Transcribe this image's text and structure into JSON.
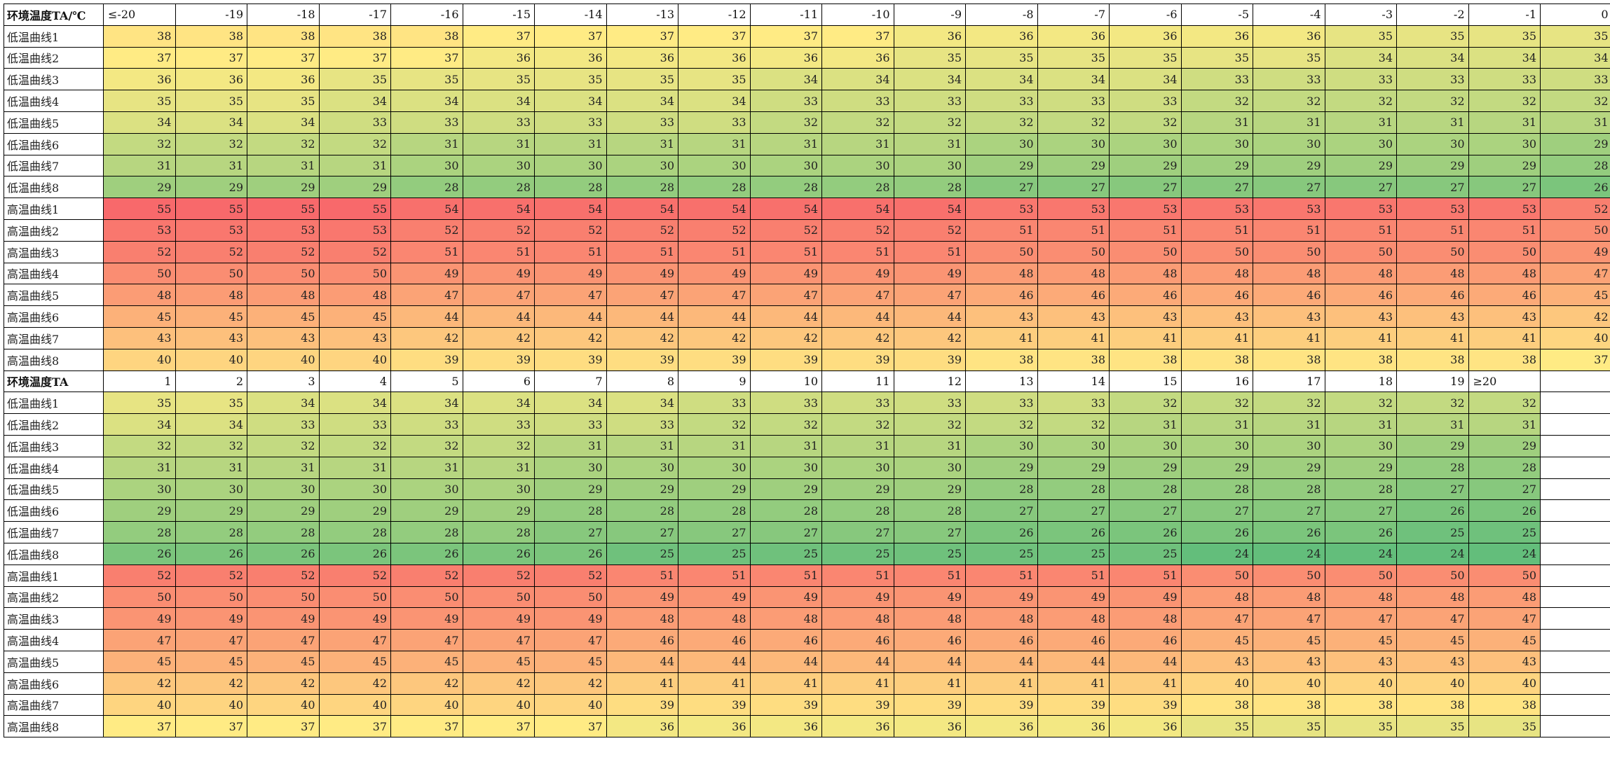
{
  "header_top": {
    "label": "环境温度TA/℃",
    "columns": [
      "≤-20",
      "-19",
      "-18",
      "-17",
      "-16",
      "-15",
      "-14",
      "-13",
      "-12",
      "-11",
      "-10",
      "-9",
      "-8",
      "-7",
      "-6",
      "-5",
      "-4",
      "-3",
      "-2",
      "-1",
      "0"
    ]
  },
  "rows_top": [
    {
      "label": "低温曲线1",
      "values": [
        38,
        38,
        38,
        38,
        38,
        37,
        37,
        37,
        37,
        37,
        37,
        36,
        36,
        36,
        36,
        36,
        36,
        35,
        35,
        35,
        35
      ]
    },
    {
      "label": "低温曲线2",
      "values": [
        37,
        37,
        37,
        37,
        37,
        36,
        36,
        36,
        36,
        36,
        36,
        35,
        35,
        35,
        35,
        35,
        35,
        34,
        34,
        34,
        34
      ]
    },
    {
      "label": "低温曲线3",
      "values": [
        36,
        36,
        36,
        35,
        35,
        35,
        35,
        35,
        35,
        34,
        34,
        34,
        34,
        34,
        34,
        33,
        33,
        33,
        33,
        33,
        33
      ]
    },
    {
      "label": "低温曲线4",
      "values": [
        35,
        35,
        35,
        34,
        34,
        34,
        34,
        34,
        34,
        33,
        33,
        33,
        33,
        33,
        33,
        32,
        32,
        32,
        32,
        32,
        32
      ]
    },
    {
      "label": "低温曲线5",
      "values": [
        34,
        34,
        34,
        33,
        33,
        33,
        33,
        33,
        33,
        32,
        32,
        32,
        32,
        32,
        32,
        31,
        31,
        31,
        31,
        31,
        31
      ]
    },
    {
      "label": "低温曲线6",
      "values": [
        32,
        32,
        32,
        32,
        31,
        31,
        31,
        31,
        31,
        31,
        31,
        31,
        30,
        30,
        30,
        30,
        30,
        30,
        30,
        30,
        29
      ]
    },
    {
      "label": "低温曲线7",
      "values": [
        31,
        31,
        31,
        31,
        30,
        30,
        30,
        30,
        30,
        30,
        30,
        30,
        29,
        29,
        29,
        29,
        29,
        29,
        29,
        29,
        28
      ]
    },
    {
      "label": "低温曲线8",
      "values": [
        29,
        29,
        29,
        29,
        28,
        28,
        28,
        28,
        28,
        28,
        28,
        28,
        27,
        27,
        27,
        27,
        27,
        27,
        27,
        27,
        26
      ]
    },
    {
      "label": "高温曲线1",
      "values": [
        55,
        55,
        55,
        55,
        54,
        54,
        54,
        54,
        54,
        54,
        54,
        54,
        53,
        53,
        53,
        53,
        53,
        53,
        53,
        53,
        52
      ]
    },
    {
      "label": "高温曲线2",
      "values": [
        53,
        53,
        53,
        53,
        52,
        52,
        52,
        52,
        52,
        52,
        52,
        52,
        51,
        51,
        51,
        51,
        51,
        51,
        51,
        51,
        50
      ]
    },
    {
      "label": "高温曲线3",
      "values": [
        52,
        52,
        52,
        52,
        51,
        51,
        51,
        51,
        51,
        51,
        51,
        51,
        50,
        50,
        50,
        50,
        50,
        50,
        50,
        50,
        49
      ]
    },
    {
      "label": "高温曲线4",
      "values": [
        50,
        50,
        50,
        50,
        49,
        49,
        49,
        49,
        49,
        49,
        49,
        49,
        48,
        48,
        48,
        48,
        48,
        48,
        48,
        48,
        47
      ]
    },
    {
      "label": "高温曲线5",
      "values": [
        48,
        48,
        48,
        48,
        47,
        47,
        47,
        47,
        47,
        47,
        47,
        47,
        46,
        46,
        46,
        46,
        46,
        46,
        46,
        46,
        45
      ]
    },
    {
      "label": "高温曲线6",
      "values": [
        45,
        45,
        45,
        45,
        44,
        44,
        44,
        44,
        44,
        44,
        44,
        44,
        43,
        43,
        43,
        43,
        43,
        43,
        43,
        43,
        42
      ]
    },
    {
      "label": "高温曲线7",
      "values": [
        43,
        43,
        43,
        43,
        42,
        42,
        42,
        42,
        42,
        42,
        42,
        42,
        41,
        41,
        41,
        41,
        41,
        41,
        41,
        41,
        40
      ]
    },
    {
      "label": "高温曲线8",
      "values": [
        40,
        40,
        40,
        40,
        39,
        39,
        39,
        39,
        39,
        39,
        39,
        39,
        38,
        38,
        38,
        38,
        38,
        38,
        38,
        38,
        37
      ]
    }
  ],
  "header_bottom": {
    "label": "环境温度TA",
    "columns": [
      "1",
      "2",
      "3",
      "4",
      "5",
      "6",
      "7",
      "8",
      "9",
      "10",
      "11",
      "12",
      "13",
      "14",
      "15",
      "16",
      "17",
      "18",
      "19",
      "≥20",
      ""
    ]
  },
  "rows_bottom": [
    {
      "label": "低温曲线1",
      "values": [
        35,
        35,
        34,
        34,
        34,
        34,
        34,
        34,
        33,
        33,
        33,
        33,
        33,
        33,
        32,
        32,
        32,
        32,
        32,
        32,
        null
      ]
    },
    {
      "label": "低温曲线2",
      "values": [
        34,
        34,
        33,
        33,
        33,
        33,
        33,
        33,
        32,
        32,
        32,
        32,
        32,
        32,
        31,
        31,
        31,
        31,
        31,
        31,
        null
      ]
    },
    {
      "label": "低温曲线3",
      "values": [
        32,
        32,
        32,
        32,
        32,
        32,
        31,
        31,
        31,
        31,
        31,
        31,
        30,
        30,
        30,
        30,
        30,
        30,
        29,
        29,
        null
      ]
    },
    {
      "label": "低温曲线4",
      "values": [
        31,
        31,
        31,
        31,
        31,
        31,
        30,
        30,
        30,
        30,
        30,
        30,
        29,
        29,
        29,
        29,
        29,
        29,
        28,
        28,
        null
      ]
    },
    {
      "label": "低温曲线5",
      "values": [
        30,
        30,
        30,
        30,
        30,
        30,
        29,
        29,
        29,
        29,
        29,
        29,
        28,
        28,
        28,
        28,
        28,
        28,
        27,
        27,
        null
      ]
    },
    {
      "label": "低温曲线6",
      "values": [
        29,
        29,
        29,
        29,
        29,
        29,
        28,
        28,
        28,
        28,
        28,
        28,
        27,
        27,
        27,
        27,
        27,
        27,
        26,
        26,
        null
      ]
    },
    {
      "label": "低温曲线7",
      "values": [
        28,
        28,
        28,
        28,
        28,
        28,
        27,
        27,
        27,
        27,
        27,
        27,
        26,
        26,
        26,
        26,
        26,
        26,
        25,
        25,
        null
      ]
    },
    {
      "label": "低温曲线8",
      "values": [
        26,
        26,
        26,
        26,
        26,
        26,
        26,
        25,
        25,
        25,
        25,
        25,
        25,
        25,
        25,
        24,
        24,
        24,
        24,
        24,
        null
      ]
    },
    {
      "label": "高温曲线1",
      "values": [
        52,
        52,
        52,
        52,
        52,
        52,
        52,
        51,
        51,
        51,
        51,
        51,
        51,
        51,
        51,
        50,
        50,
        50,
        50,
        50,
        null
      ]
    },
    {
      "label": "高温曲线2",
      "values": [
        50,
        50,
        50,
        50,
        50,
        50,
        50,
        49,
        49,
        49,
        49,
        49,
        49,
        49,
        49,
        48,
        48,
        48,
        48,
        48,
        null
      ]
    },
    {
      "label": "高温曲线3",
      "values": [
        49,
        49,
        49,
        49,
        49,
        49,
        49,
        48,
        48,
        48,
        48,
        48,
        48,
        48,
        48,
        47,
        47,
        47,
        47,
        47,
        null
      ]
    },
    {
      "label": "高温曲线4",
      "values": [
        47,
        47,
        47,
        47,
        47,
        47,
        47,
        46,
        46,
        46,
        46,
        46,
        46,
        46,
        46,
        45,
        45,
        45,
        45,
        45,
        null
      ]
    },
    {
      "label": "高温曲线5",
      "values": [
        45,
        45,
        45,
        45,
        45,
        45,
        45,
        44,
        44,
        44,
        44,
        44,
        44,
        44,
        44,
        43,
        43,
        43,
        43,
        43,
        null
      ]
    },
    {
      "label": "高温曲线6",
      "values": [
        42,
        42,
        42,
        42,
        42,
        42,
        42,
        41,
        41,
        41,
        41,
        41,
        41,
        41,
        41,
        40,
        40,
        40,
        40,
        40,
        null
      ]
    },
    {
      "label": "高温曲线7",
      "values": [
        40,
        40,
        40,
        40,
        40,
        40,
        40,
        39,
        39,
        39,
        39,
        39,
        39,
        39,
        39,
        38,
        38,
        38,
        38,
        38,
        null
      ]
    },
    {
      "label": "高温曲线8",
      "values": [
        37,
        37,
        37,
        37,
        37,
        37,
        37,
        36,
        36,
        36,
        36,
        36,
        36,
        36,
        36,
        35,
        35,
        35,
        35,
        35,
        null
      ]
    }
  ],
  "color_scale": {
    "low_color": "#63be7b",
    "mid_color": "#ffeb84",
    "high_color": "#f8696b",
    "min_value": 24,
    "mid_value": 37,
    "max_value": 55
  }
}
